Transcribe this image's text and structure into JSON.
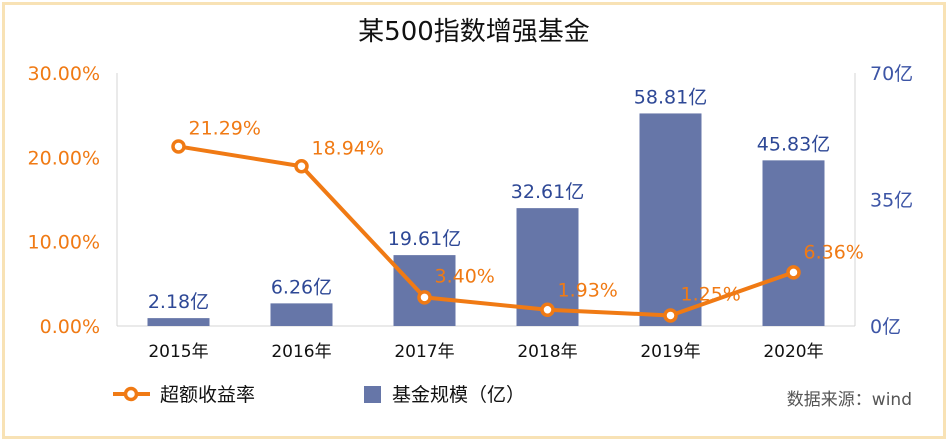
{
  "chart_data": {
    "type": "bar+line",
    "title": "某500指数增强基金",
    "categories": [
      "2015年",
      "2016年",
      "2017年",
      "2018年",
      "2019年",
      "2020年"
    ],
    "series": [
      {
        "name": "基金规模（亿）",
        "type": "bar",
        "axis": "right",
        "values": [
          2.18,
          6.26,
          19.61,
          32.61,
          58.81,
          45.83
        ],
        "labels": [
          "2.18亿",
          "6.26亿",
          "19.61亿",
          "32.61亿",
          "58.81亿",
          "45.83亿"
        ]
      },
      {
        "name": "超额收益率",
        "type": "line",
        "axis": "left",
        "values": [
          21.29,
          18.94,
          3.4,
          1.93,
          1.25,
          6.36
        ],
        "labels": [
          "21.29%",
          "18.94%",
          "3.40%",
          "1.93%",
          "1.25%",
          "6.36%"
        ]
      }
    ],
    "left_axis": {
      "ylim": [
        0,
        30
      ],
      "ticks": [
        0,
        10,
        20,
        30
      ],
      "tick_labels": [
        "0.00%",
        "10.00%",
        "20.00%",
        "30.00%"
      ]
    },
    "right_axis": {
      "ylim": [
        0,
        70
      ],
      "ticks": [
        0,
        35,
        70
      ],
      "tick_labels": [
        "0亿",
        "35亿",
        "70亿"
      ]
    },
    "legend_position": "bottom",
    "source": "数据来源：wind"
  },
  "colors": {
    "bar": "#6676a8",
    "line": "#f07a14",
    "left_axis_text": "#f07a14",
    "right_axis_text": "#3d55a6",
    "bar_label": "#2e4896",
    "axis_line": "#d4d4d4",
    "frame": "#f8e2b5"
  }
}
